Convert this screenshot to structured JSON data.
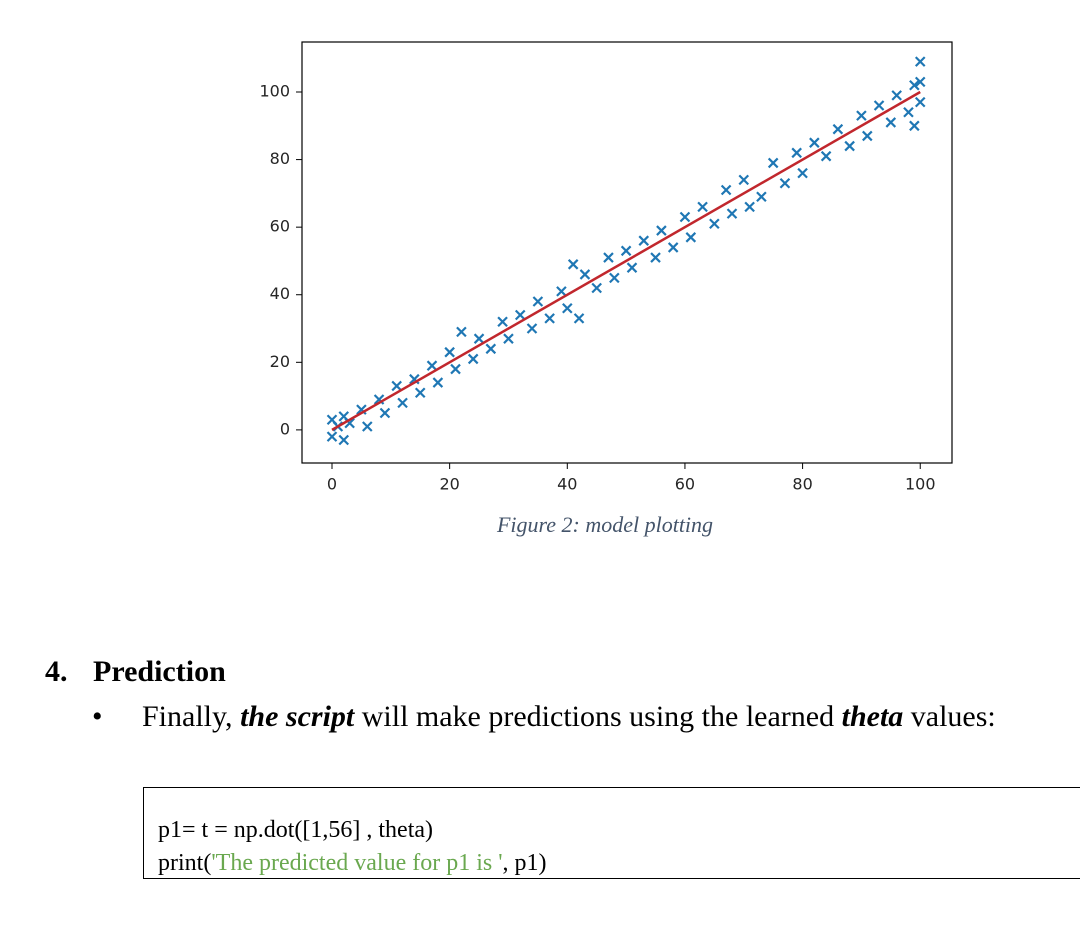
{
  "chart_data": {
    "type": "scatter",
    "marker": "x",
    "color": "#1f77b4",
    "x": [
      0,
      0,
      1,
      2,
      2,
      3,
      5,
      6,
      8,
      9,
      11,
      12,
      14,
      15,
      17,
      18,
      20,
      21,
      22,
      24,
      25,
      27,
      29,
      30,
      32,
      34,
      35,
      37,
      39,
      40,
      41,
      42,
      43,
      45,
      47,
      48,
      50,
      51,
      53,
      55,
      56,
      58,
      60,
      61,
      63,
      65,
      67,
      68,
      70,
      71,
      73,
      75,
      77,
      79,
      80,
      82,
      84,
      86,
      88,
      90,
      91,
      93,
      95,
      96,
      98,
      99,
      99,
      100,
      100,
      100
    ],
    "values": [
      -2,
      3,
      1,
      -3,
      4,
      2,
      6,
      1,
      9,
      5,
      13,
      8,
      15,
      11,
      19,
      14,
      23,
      18,
      29,
      21,
      27,
      24,
      32,
      27,
      34,
      30,
      38,
      33,
      41,
      36,
      49,
      33,
      46,
      42,
      51,
      45,
      53,
      48,
      56,
      51,
      59,
      54,
      63,
      57,
      66,
      61,
      71,
      64,
      74,
      66,
      69,
      79,
      73,
      82,
      76,
      85,
      81,
      89,
      84,
      93,
      87,
      96,
      91,
      99,
      94,
      102,
      90,
      97,
      109,
      103
    ],
    "fit": {
      "x": [
        0,
        100
      ],
      "values": [
        0,
        100
      ],
      "color": "#c1272d"
    },
    "xlim": [
      -5.1,
      105.4
    ],
    "ylim": [
      -9.8,
      114.8
    ],
    "xticks": [
      0,
      20,
      40,
      60,
      80,
      100
    ],
    "yticks": [
      0,
      20,
      40,
      60,
      80,
      100
    ]
  },
  "caption": "Figure 2: model plotting",
  "heading": {
    "number": "4.",
    "text": "Prediction"
  },
  "bullet": [
    {
      "text": "Finally, "
    },
    {
      "text": "the script",
      "style": "bold-italic"
    },
    {
      "text": " will make predictions using the learned "
    },
    {
      "text": "theta",
      "style": "bold-italic"
    },
    {
      "text": " values:"
    }
  ],
  "code": [
    [
      {
        "text": "p1= t = np.dot([1,56] , theta)"
      }
    ],
    [
      {
        "text": "print("
      },
      {
        "text": "'The predicted value for p1 is '",
        "style": "string"
      },
      {
        "text": ", p1)"
      }
    ]
  ]
}
